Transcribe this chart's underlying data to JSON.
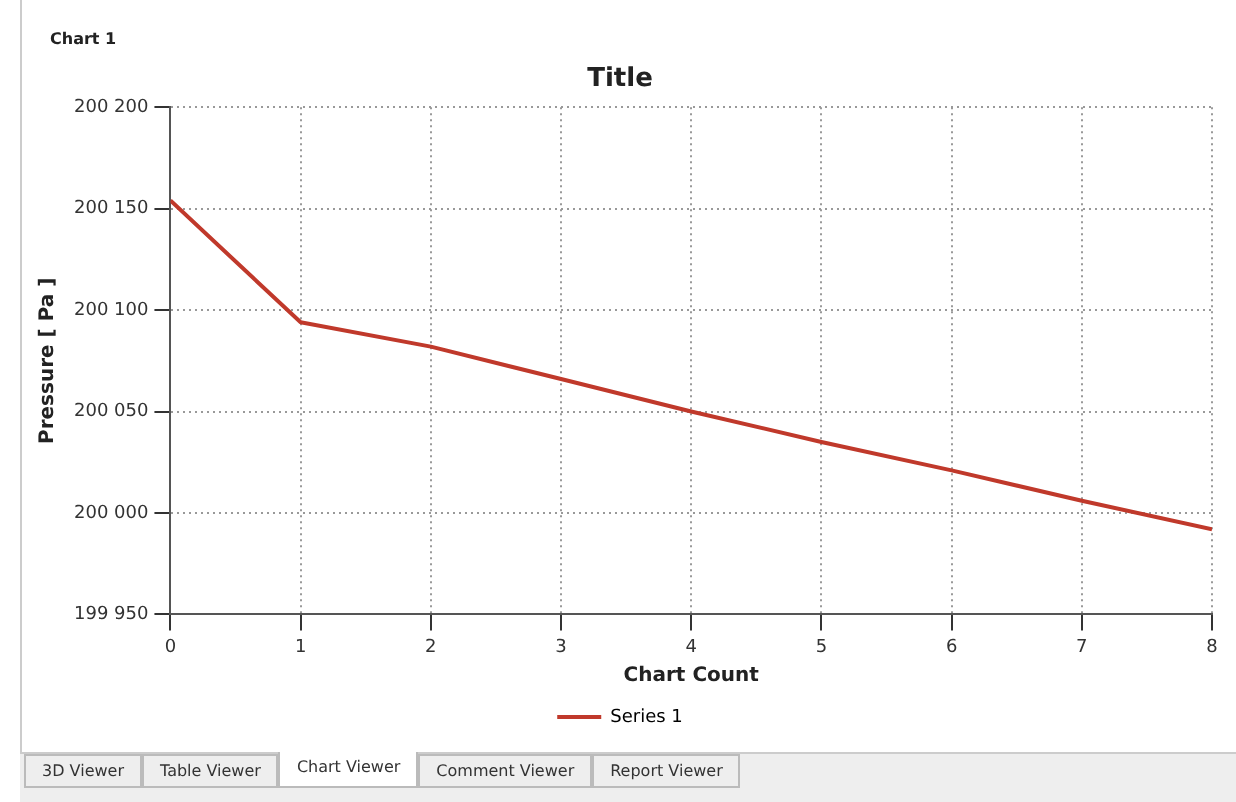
{
  "chart_data": {
    "type": "line",
    "title": "Title",
    "xlabel": "Chart Count",
    "ylabel": "Pressure [ Pa ]",
    "annotations": [
      "Chart 1",
      "3D Viewer",
      "Table Viewer",
      "Chart Viewer",
      "Comment Viewer",
      "Report Viewer"
    ],
    "x": [
      0,
      1,
      2,
      3,
      4,
      5,
      6,
      7,
      8
    ],
    "series": [
      {
        "name": "Series 1",
        "color": "#c0392b",
        "values": [
          200154,
          200094,
          200082,
          200066,
          200050,
          200035,
          200021,
          200006,
          199992
        ]
      }
    ],
    "xlim": [
      0,
      8
    ],
    "xticks": [
      0,
      1,
      2,
      3,
      4,
      5,
      6,
      7,
      8
    ],
    "ylim": [
      199950,
      200200
    ],
    "yticks": [
      {
        "value": 199950,
        "label": "199 950"
      },
      {
        "value": 200000,
        "label": "200 000"
      },
      {
        "value": 200050,
        "label": "200 050"
      },
      {
        "value": 200100,
        "label": "200 100"
      },
      {
        "value": 200150,
        "label": "200 150"
      },
      {
        "value": 200200,
        "label": "200 200"
      }
    ],
    "grid": true,
    "legend": "bottom",
    "marker": "none",
    "line_style": "solid"
  }
}
